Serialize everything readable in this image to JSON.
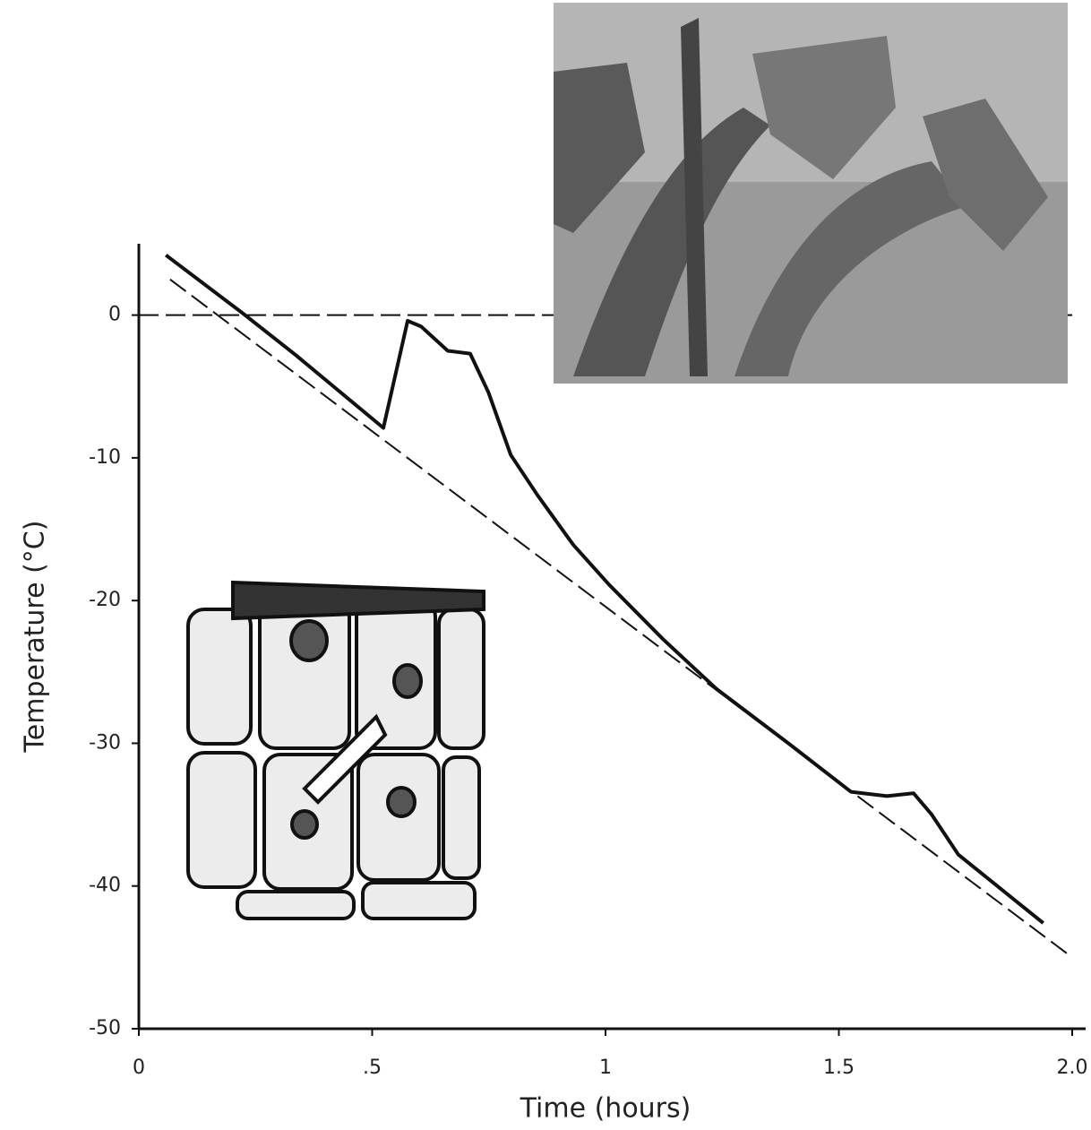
{
  "chart_data": {
    "type": "line",
    "x_label": "Time (hours)",
    "y_label": "Temperature (°C)",
    "xlim": [
      0,
      2.0
    ],
    "ylim": [
      -50,
      5
    ],
    "xticks": [
      0,
      {
        "value": 0.5,
        "label": ".5"
      },
      1,
      1.5,
      {
        "value": 2.0,
        "label": "2.0"
      }
    ],
    "yticks": [
      0,
      -10,
      -20,
      -30,
      -40,
      -50
    ],
    "grid": false,
    "series": [
      {
        "color": "#111111",
        "dashed": false,
        "x": [
          0.058,
          0.22,
          0.336,
          0.524,
          0.576,
          0.605,
          0.662,
          0.71,
          0.749,
          0.797,
          0.854,
          0.931,
          1.008,
          1.123,
          1.238,
          1.392,
          1.526,
          1.603,
          1.66,
          1.699,
          1.756,
          1.938
        ],
        "values": [
          4.2,
          0.2,
          -2.8,
          -7.9,
          -0.4,
          -0.8,
          -2.5,
          -2.7,
          -5.4,
          -9.8,
          -12.6,
          -16.1,
          -18.9,
          -22.7,
          -26.2,
          -30,
          -33.4,
          -33.7,
          -33.5,
          -35,
          -37.8,
          -42.6
        ]
      },
      {
        "color": "#111111",
        "dashed": true,
        "x": [
          0.067,
          2.0
        ],
        "values": [
          2.5,
          -45
        ]
      },
      {
        "color": "#111111",
        "dashed": true,
        "x": [
          0,
          2.0
        ],
        "values": [
          0,
          0
        ]
      }
    ]
  }
}
